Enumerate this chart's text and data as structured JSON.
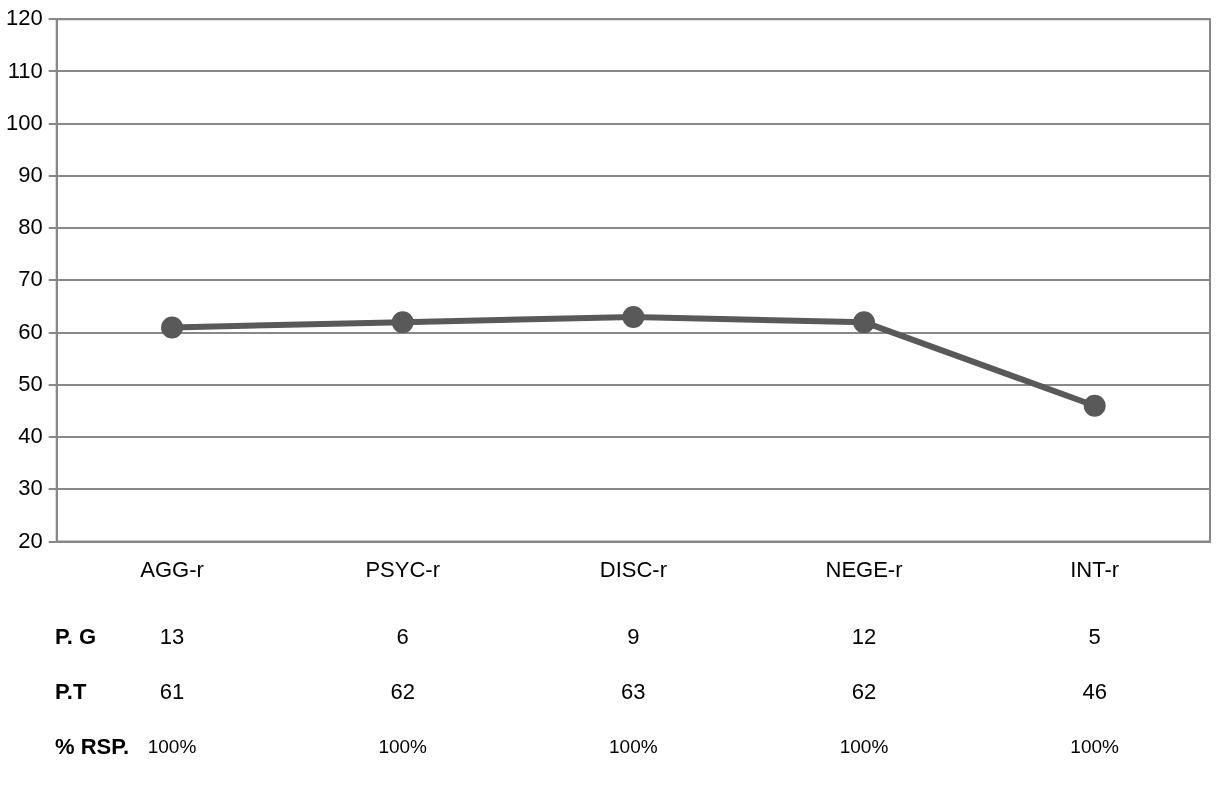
{
  "chart_data": {
    "type": "line",
    "categories": [
      "AGG-r",
      "PSYC-r",
      "DISC-r",
      "NEGE-r",
      "INT-r"
    ],
    "series": [
      {
        "color": "#595959",
        "values": [
          61,
          62,
          63,
          62,
          46
        ]
      }
    ],
    "ylim": [
      20,
      120
    ],
    "yticks": [
      20,
      30,
      40,
      50,
      60,
      70,
      80,
      90,
      100,
      110,
      120
    ],
    "grid": "y",
    "marker": "circle",
    "line_style": "solid",
    "legend": false,
    "annotations": [
      "P. G",
      "13",
      "6",
      "9",
      "12",
      "5",
      "P.T",
      "61",
      "62",
      "63",
      "62",
      "46",
      "% RSP.",
      "100%",
      "100%",
      "100%",
      "100%",
      "100%"
    ]
  }
}
